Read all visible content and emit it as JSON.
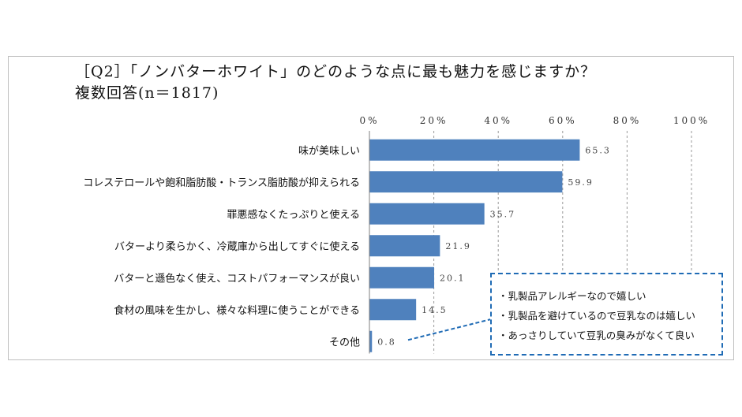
{
  "title_line1": "［Q2］「ノンバターホワイト」のどのような点に最も魅力を感じますか？",
  "title_line2": "複数回答(n＝1817)",
  "chart_data": {
    "type": "bar",
    "orientation": "horizontal",
    "categories": [
      "味が美味しい",
      "コレステロールや飽和脂肪酸・トランス脂肪酸が抑えられる",
      "罪悪感なくたっぷりと使える",
      "バターより柔らかく、冷蔵庫から出してすぐに使える",
      "バターと遜色なく使え、コストパフォーマンスが良い",
      "食材の風味を生かし、様々な料理に使うことができる",
      "その他"
    ],
    "values": [
      65.3,
      59.9,
      35.7,
      21.9,
      20.1,
      14.5,
      0.8
    ],
    "value_labels": [
      "65.3",
      "59.9",
      "35.7",
      "21.9",
      "20.1",
      "14.5",
      "0.8"
    ],
    "xlim": [
      0,
      100
    ],
    "x_ticks": [
      0,
      20,
      40,
      60,
      80,
      100
    ],
    "x_tick_labels": [
      "0%",
      "20%",
      "40%",
      "60%",
      "80%",
      "100%"
    ],
    "grid": true,
    "bar_color": "#4f81bd"
  },
  "callout": {
    "lines": [
      "・乳製品アレルギーなので嬉しい",
      "・乳製品を避けているので豆乳なのは嬉しい",
      "・あっさりしていて豆乳の臭みがなくて良い"
    ],
    "border_color": "#1f6bb5"
  }
}
